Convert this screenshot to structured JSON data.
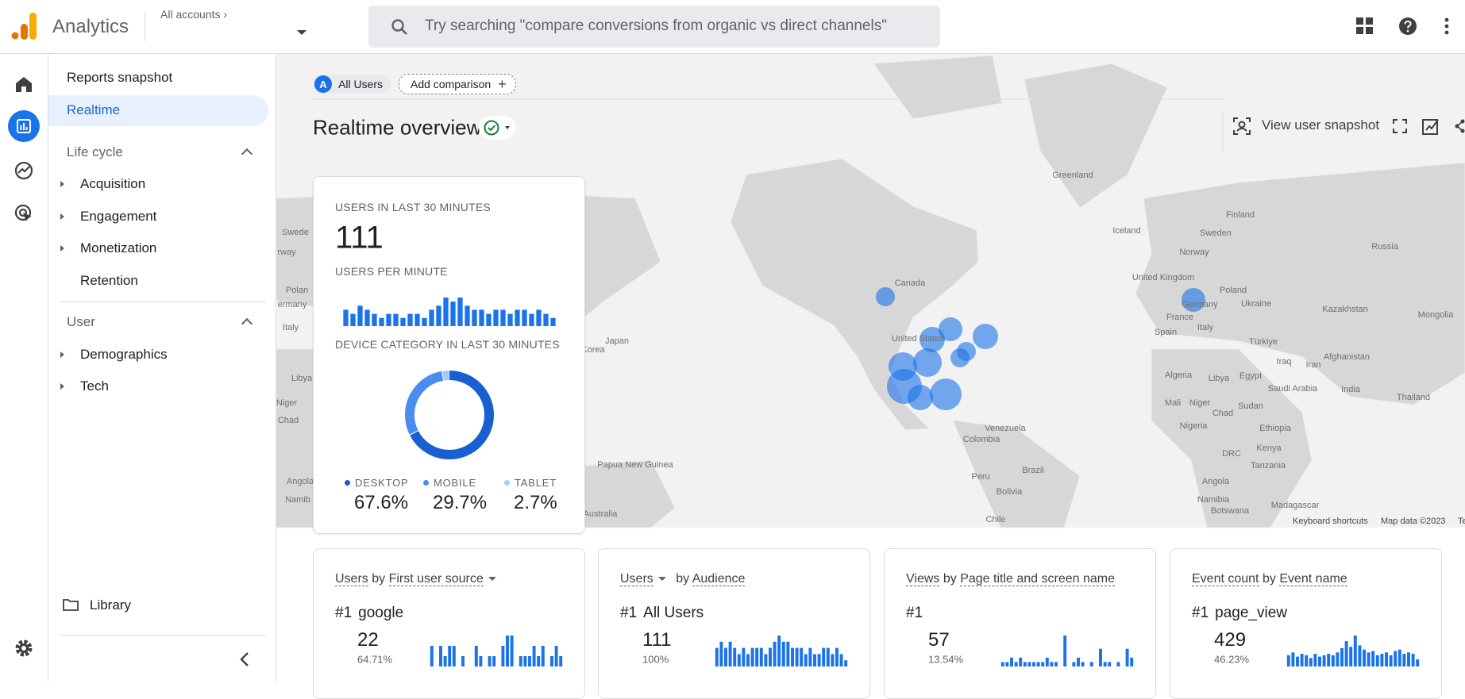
{
  "header": {
    "product": "Analytics",
    "account": "All accounts",
    "search_placeholder": "Try searching \"compare conversions from organic vs direct channels\""
  },
  "nav": {
    "reports_snapshot": "Reports snapshot",
    "realtime": "Realtime",
    "sections": [
      {
        "title": "Life cycle",
        "items": [
          "Acquisition",
          "Engagement",
          "Monetization",
          "Retention"
        ]
      },
      {
        "title": "User",
        "items": [
          "Demographics",
          "Tech"
        ]
      }
    ],
    "library": "Library"
  },
  "comparison": {
    "chip_letter": "A",
    "segment": "All Users",
    "add": "Add comparison"
  },
  "page_title": "Realtime overview",
  "toolbar": {
    "view_snapshot": "View user snapshot"
  },
  "map": {
    "labels": [
      "Greenland",
      "Iceland",
      "Finland",
      "Sweden",
      "Norway",
      "Russia",
      "Canada",
      "United Kingdom",
      "Poland",
      "Ukraine",
      "Kazakhstan",
      "Mongolia",
      "Germany",
      "France",
      "Italy",
      "Spain",
      "Türkiye",
      "Iraq",
      "Iran",
      "Afghanistan",
      "Algeria",
      "Libya",
      "Egypt",
      "Saudi Arabia",
      "India",
      "Thailand",
      "Mali",
      "Niger",
      "Chad",
      "Sudan",
      "Nigeria",
      "Ethiopia",
      "DRC",
      "Kenya",
      "Tanzania",
      "Angola",
      "Namibia",
      "Botswana",
      "Madagascar",
      "United States",
      "Venezuela",
      "Colombia",
      "Peru",
      "Brazil",
      "Bolivia",
      "Chile",
      "Japan",
      "Korea",
      "Papua New Guinea",
      "Australia",
      "Swede",
      "rway",
      "Polan",
      "ermany",
      "Italy",
      "Libya",
      "Niger",
      "Chad",
      "Angola",
      "Namib"
    ],
    "footer": [
      "Keyboard shortcuts",
      "Map data ©2023",
      "Terms"
    ]
  },
  "realtime_card": {
    "users_heading": "USERS IN LAST 30 MINUTES",
    "users": 111,
    "per_minute_heading": "USERS PER MINUTE",
    "per_minute": {
      "color": "#1a73e8",
      "values": [
        4,
        3,
        5,
        4,
        3,
        2,
        3,
        3,
        2,
        3,
        3,
        2,
        4,
        5,
        7,
        6,
        7,
        5,
        4,
        4,
        3,
        4,
        4,
        3,
        4,
        4,
        3,
        4,
        3,
        2
      ]
    },
    "device_heading": "DEVICE CATEGORY IN LAST 30 MINUTES",
    "device": {
      "categories": [
        "DESKTOP",
        "MOBILE",
        "TABLET"
      ],
      "values": [
        67.6,
        29.7,
        2.7
      ],
      "value_labels": [
        "67.6%",
        "29.7%",
        "2.7%"
      ],
      "colors": [
        "#1a5fd1",
        "#4a8cf0",
        "#a8c7fa"
      ]
    }
  },
  "cards": [
    {
      "metric": "Users",
      "by": "by",
      "dimension": "First user source",
      "rank": "#1",
      "top": "google",
      "value": 22,
      "percent": "64.71%",
      "bars": [
        2,
        0,
        2,
        1,
        2,
        2,
        0,
        1,
        0,
        0,
        2,
        1,
        0,
        1,
        1,
        0,
        2,
        3,
        3,
        0,
        1,
        1,
        1,
        2,
        1,
        2,
        0,
        1,
        2,
        1
      ]
    },
    {
      "metric": "Users",
      "by": "by",
      "dimension": "Audience",
      "rank": "#1",
      "top": "All Users",
      "value": 111,
      "percent": "100%",
      "bars": [
        3,
        4,
        3,
        4,
        3,
        2,
        3,
        2,
        3,
        3,
        3,
        2,
        3,
        4,
        5,
        4,
        4,
        3,
        3,
        3,
        2,
        3,
        2,
        2,
        3,
        3,
        2,
        3,
        2,
        1
      ]
    },
    {
      "metric": "Views",
      "by": "by",
      "dimension": "Page title and screen name",
      "rank": "#1",
      "value": 57,
      "percent": "13.54%",
      "bars": [
        1,
        1,
        2,
        1,
        2,
        1,
        1,
        1,
        1,
        1,
        2,
        1,
        1,
        0,
        7,
        0,
        1,
        2,
        1,
        0,
        1,
        0,
        4,
        1,
        1,
        0,
        1,
        0,
        4,
        2
      ]
    },
    {
      "metric": "Event count",
      "by": "by",
      "dimension": "Event name",
      "rank": "#1",
      "top": "page_view",
      "value": 429,
      "percent": "46.23%",
      "bars": [
        8,
        10,
        7,
        9,
        8,
        6,
        9,
        7,
        8,
        9,
        8,
        10,
        13,
        18,
        14,
        22,
        15,
        12,
        10,
        11,
        8,
        9,
        10,
        8,
        11,
        12,
        9,
        10,
        9,
        5
      ]
    }
  ]
}
